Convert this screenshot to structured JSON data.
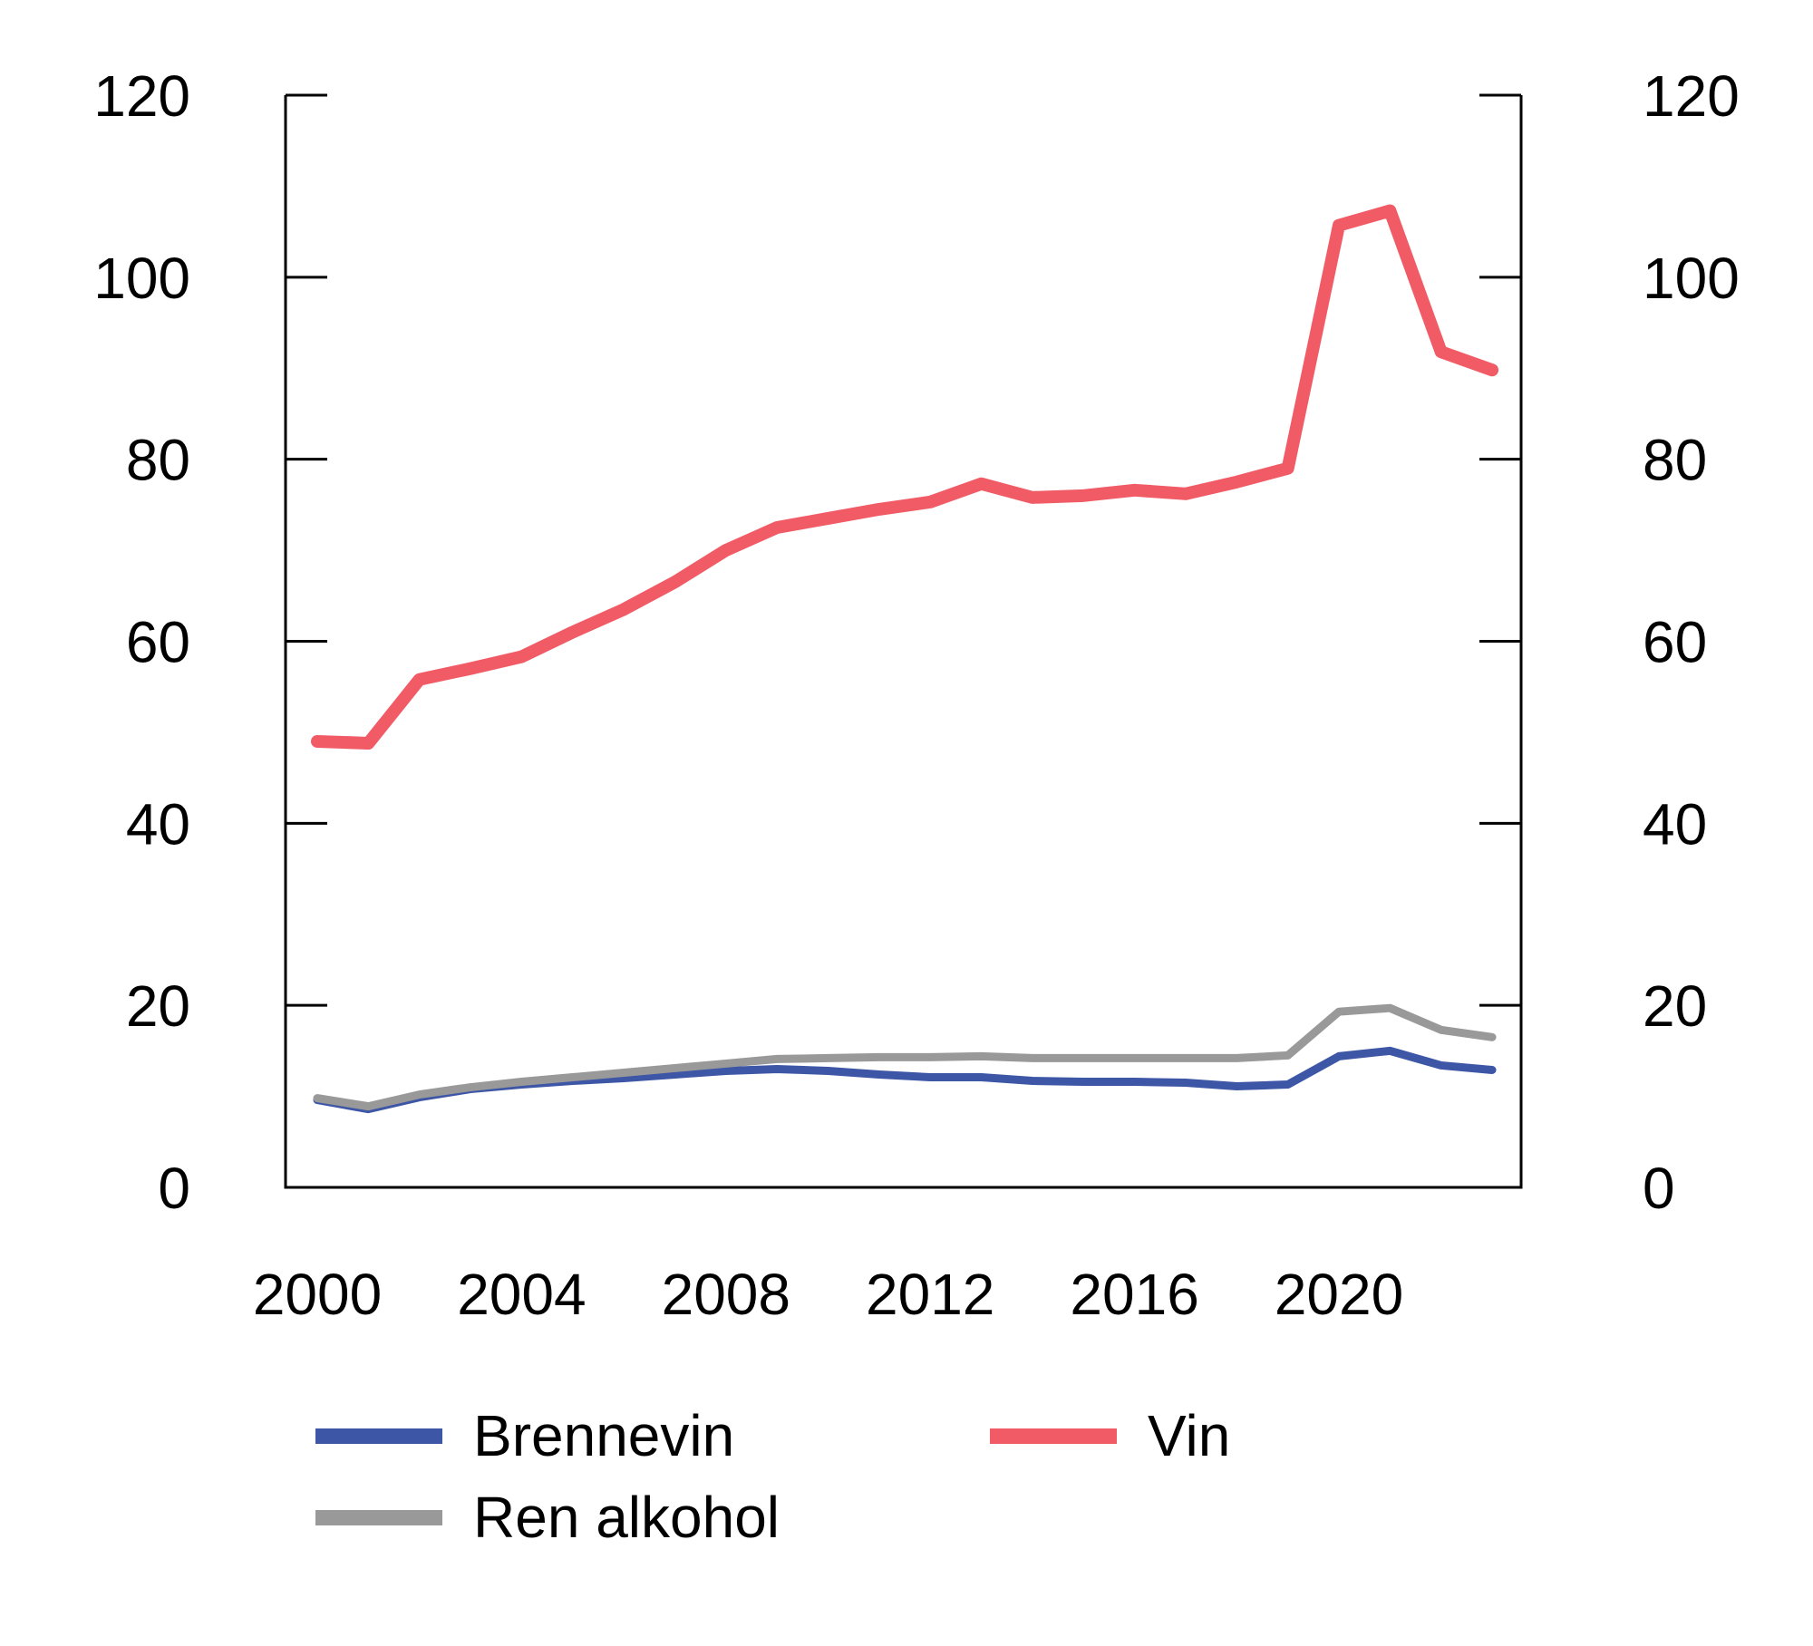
{
  "chart_data": {
    "type": "line",
    "title": "",
    "xlabel": "",
    "ylabel": "",
    "x": [
      2000,
      2001,
      2002,
      2003,
      2004,
      2005,
      2006,
      2007,
      2008,
      2009,
      2010,
      2011,
      2012,
      2013,
      2014,
      2015,
      2016,
      2017,
      2018,
      2019,
      2020,
      2021,
      2022,
      2023
    ],
    "series": [
      {
        "name": "Brennevin",
        "color": "#3D56A6",
        "line_width": 9,
        "values": [
          9.6,
          8.6,
          9.9,
          10.8,
          11.3,
          11.7,
          12.0,
          12.4,
          12.8,
          13.0,
          12.8,
          12.4,
          12.1,
          12.1,
          11.7,
          11.6,
          11.6,
          11.5,
          11.1,
          11.3,
          14.4,
          15.0,
          13.4,
          12.9
        ]
      },
      {
        "name": "Vin",
        "color": "#F05B66",
        "line_width": 14,
        "values": [
          49.0,
          48.8,
          55.8,
          57.0,
          58.3,
          61.0,
          63.5,
          66.5,
          70.0,
          72.5,
          73.5,
          74.5,
          75.3,
          77.3,
          75.8,
          76.0,
          76.6,
          76.2,
          77.5,
          79.0,
          105.7,
          107.3,
          91.8,
          89.8
        ]
      },
      {
        "name": "Ren alkohol",
        "color": "#999999",
        "line_width": 9,
        "values": [
          9.8,
          8.9,
          10.2,
          11.0,
          11.6,
          12.1,
          12.6,
          13.1,
          13.6,
          14.1,
          14.2,
          14.3,
          14.3,
          14.4,
          14.2,
          14.2,
          14.2,
          14.2,
          14.2,
          14.5,
          19.3,
          19.7,
          17.3,
          16.5
        ]
      }
    ],
    "y_axis": {
      "min": 0,
      "max": 120,
      "ticks": [
        0,
        20,
        40,
        60,
        80,
        100,
        120
      ],
      "tick_labels": [
        "0",
        "20",
        "40",
        "60",
        "80",
        "100",
        "120"
      ],
      "sides": "both",
      "grid": false
    },
    "x_axis": {
      "tick_label_years": [
        2000,
        2004,
        2008,
        2012,
        2016,
        2020
      ],
      "tick_labels": [
        "2000",
        "2004",
        "2008",
        "2012",
        "2016",
        "2020"
      ]
    },
    "legend": {
      "position": "bottom-left",
      "entries": [
        "Brennevin",
        "Vin",
        "Ren alkohol"
      ]
    }
  },
  "legend": {
    "items": [
      {
        "label": "Brennevin"
      },
      {
        "label": "Vin"
      },
      {
        "label": "Ren alkohol"
      }
    ]
  }
}
